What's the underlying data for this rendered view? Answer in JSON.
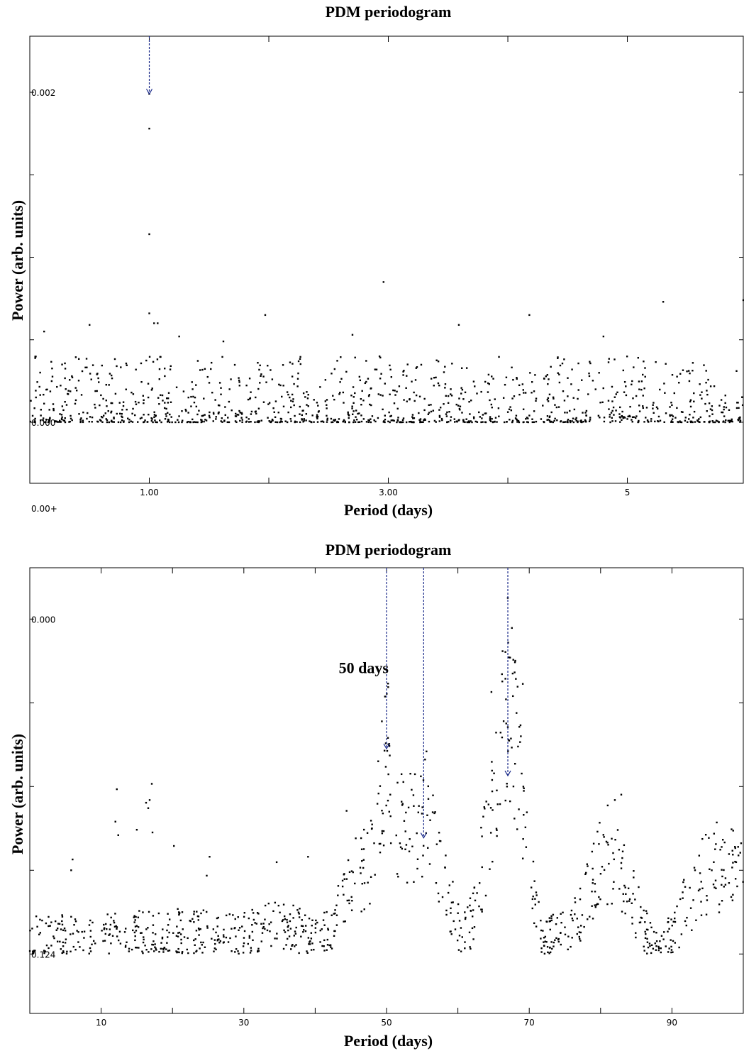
{
  "chart_data": [
    {
      "type": "scatter",
      "title": "PDM periodogram",
      "xlabel": "Period (days)",
      "ylabel": "Power (arb. units)",
      "x_ticks": [
        {
          "x": 1.0,
          "label": "1.00"
        },
        {
          "x": 2.0,
          "label": ""
        },
        {
          "x": 3.0,
          "label": "3.00"
        },
        {
          "x": 4.0,
          "label": ""
        },
        {
          "x": 5.0,
          "label": "5"
        }
      ],
      "y_ticks": [
        {
          "y": 0.002,
          "label": "0.002"
        },
        {
          "y": 0.0015,
          "label": ""
        },
        {
          "y": 0.001,
          "label": ""
        },
        {
          "y": 0.0005,
          "label": ""
        },
        {
          "y": 0.0,
          "label": "0.000"
        }
      ],
      "corner_label": "0.00+",
      "xlim": [
        0.0,
        5.97
      ],
      "ylim": [
        -0.00037,
        0.00234
      ],
      "grid": false,
      "series": [
        {
          "peak_points": [
            [
              1.0,
              0.00199
            ],
            [
              1.0,
              0.00178
            ],
            [
              1.0,
              0.00114
            ],
            [
              1.0,
              0.00066
            ],
            [
              1.04,
              0.0006
            ],
            [
              1.07,
              0.0006
            ],
            [
              1.25,
              0.00052
            ],
            [
              1.62,
              0.00049
            ],
            [
              1.97,
              0.00065
            ],
            [
              2.96,
              0.00085
            ],
            [
              3.59,
              0.00059
            ],
            [
              4.18,
              0.00065
            ],
            [
              4.8,
              0.00052
            ],
            [
              5.3,
              0.00073
            ],
            [
              5.97,
              0.00074
            ],
            [
              0.12,
              0.00055
            ],
            [
              0.5,
              0.00059
            ],
            [
              2.7,
              0.00053
            ]
          ],
          "noise_band": [
            0.0,
            0.0004
          ]
        }
      ],
      "annotations": [
        {
          "x": 1.0,
          "y_from": 0.00234,
          "y_to": 0.00199,
          "label": ""
        }
      ]
    },
    {
      "type": "scatter",
      "title": "PDM periodogram",
      "xlabel": "Period (days)",
      "ylabel": "Power (arb. units)",
      "x_ticks": [
        {
          "x": 10,
          "label": "10"
        },
        {
          "x": 20,
          "label": ""
        },
        {
          "x": 30,
          "label": "30"
        },
        {
          "x": 40,
          "label": ""
        },
        {
          "x": 50,
          "label": "50"
        },
        {
          "x": 60,
          "label": ""
        },
        {
          "x": 70,
          "label": "70"
        },
        {
          "x": 80,
          "label": ""
        },
        {
          "x": 90,
          "label": "90"
        }
      ],
      "y_ticks": [
        {
          "y": 0.0,
          "label": "0.000"
        },
        {
          "y": 0.031,
          "label": ""
        },
        {
          "y": 0.062,
          "label": ""
        },
        {
          "y": 0.093,
          "label": ""
        },
        {
          "y": 0.124,
          "label": "0.124"
        }
      ],
      "y_inverted": true,
      "xlim": [
        0.0,
        100.0
      ],
      "ylim": [
        0.146,
        -0.019
      ],
      "grid": false,
      "series": [
        {
          "envelope_x": [
            0,
            10,
            20,
            30,
            35,
            40,
            42,
            45,
            48,
            50,
            52,
            55,
            57,
            60,
            62,
            64,
            66,
            67,
            68,
            70,
            72,
            75,
            77,
            80,
            82,
            84,
            86,
            88,
            90,
            93,
            96,
            100
          ],
          "envelope_y": [
            0.118,
            0.117,
            0.116,
            0.117,
            0.113,
            0.118,
            0.116,
            0.098,
            0.088,
            0.05,
            0.077,
            0.078,
            0.086,
            0.114,
            0.113,
            0.082,
            0.05,
            0.03,
            0.045,
            0.097,
            0.117,
            0.117,
            0.11,
            0.091,
            0.09,
            0.1,
            0.115,
            0.12,
            0.118,
            0.1,
            0.092,
            0.094
          ],
          "extra_points": [
            [
              12.2,
              0.063
            ],
            [
              12.0,
              0.075
            ],
            [
              12.4,
              0.08
            ],
            [
              16.3,
              0.068
            ],
            [
              16.6,
              0.07
            ],
            [
              16.8,
              0.067
            ],
            [
              17.1,
              0.061
            ],
            [
              15.0,
              0.078
            ],
            [
              17.2,
              0.079
            ],
            [
              5.8,
              0.093
            ],
            [
              6.0,
              0.089
            ],
            [
              20.2,
              0.084
            ],
            [
              25.2,
              0.088
            ],
            [
              24.8,
              0.095
            ],
            [
              39.0,
              0.088
            ],
            [
              34.6,
              0.09
            ],
            [
              44.4,
              0.071
            ],
            [
              49.9,
              0.046
            ],
            [
              50.2,
              0.044
            ],
            [
              50.4,
              0.047
            ],
            [
              55.6,
              0.049
            ],
            [
              55.4,
              0.052
            ],
            [
              64.7,
              0.027
            ],
            [
              67.0,
              0.04
            ],
            [
              68.0,
              0.016
            ],
            [
              69.1,
              0.024
            ],
            [
              81.0,
              0.069
            ],
            [
              82.0,
              0.067
            ],
            [
              82.9,
              0.065
            ],
            [
              98.0,
              0.087
            ],
            [
              99.0,
              0.09
            ]
          ]
        }
      ],
      "annotations": [
        {
          "x": 50.0,
          "y_from": -0.019,
          "y_to": 0.048,
          "label": "50 days",
          "label_at": [
            46.8,
            0.02
          ]
        },
        {
          "x": 55.2,
          "y_from": -0.019,
          "y_to": 0.081,
          "label": ""
        },
        {
          "x": 67.0,
          "y_from": -0.019,
          "y_to": 0.058,
          "label": ""
        }
      ]
    }
  ]
}
